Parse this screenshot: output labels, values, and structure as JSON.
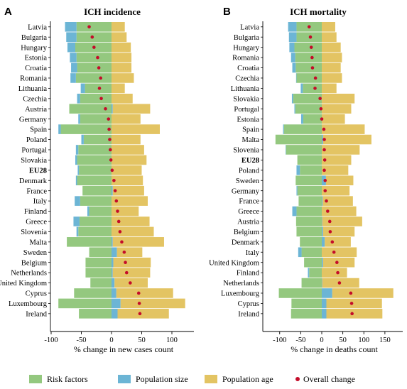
{
  "colors": {
    "risk": "#94c87f",
    "popsize": "#6cb5d5",
    "popage": "#e3c463",
    "overall": "#c40c2a"
  },
  "legend": [
    {
      "key": "risk",
      "label": "Risk factors",
      "kind": "box"
    },
    {
      "key": "popsize",
      "label": "Population size",
      "kind": "box"
    },
    {
      "key": "popage",
      "label": "Population age",
      "kind": "box"
    },
    {
      "key": "overall",
      "label": "Overall change",
      "kind": "dot"
    }
  ],
  "chart_data": [
    {
      "type": "bar",
      "subtype": "stacked-horizontal-with-overall-point",
      "panel": "A",
      "title": "ICH incidence",
      "xlabel": "% change in new cases count",
      "xlim": [
        -100,
        140
      ],
      "xticks": [
        -100,
        -50,
        0,
        50,
        100
      ],
      "bold_categories": [
        "EU28"
      ],
      "categories": [
        "Latvia",
        "Bulgaria",
        "Hungary",
        "Estonia",
        "Croatia",
        "Romania",
        "Lithuania",
        "Czechia",
        "Austria",
        "Germany",
        "Spain",
        "Poland",
        "Portugal",
        "Slovakia",
        "EU28",
        "Denmark",
        "France",
        "Italy",
        "Finland",
        "Greece",
        "Slovenia",
        "Malta",
        "Sweden",
        "Belgium",
        "Netherlands",
        "United Kingdom",
        "Cyprus",
        "Luxembourg",
        "Ireland"
      ],
      "series": [
        {
          "name": "Risk factors",
          "key": "risk",
          "values": [
            -58,
            -58,
            -60,
            -58,
            -57,
            -59,
            -44,
            -52,
            -70,
            -52,
            -84,
            -46,
            -55,
            -57,
            -54,
            -57,
            -48,
            -52,
            -37,
            -53,
            -55,
            -74,
            -37,
            -43,
            -43,
            -35,
            -62,
            -88,
            -54
          ]
        },
        {
          "name": "Population size",
          "key": "popsize",
          "values": [
            -19,
            -17,
            -13,
            -11,
            -10,
            -9,
            -7,
            -5,
            2,
            -3,
            -4,
            -4,
            -4,
            -3,
            -2,
            -2,
            2,
            -9,
            -3,
            -10,
            -3,
            2,
            9,
            3,
            2,
            5,
            8,
            15,
            10
          ]
        },
        {
          "name": "Population age",
          "key": "popage",
          "values": [
            22,
            25,
            32,
            33,
            33,
            37,
            22,
            35,
            62,
            48,
            80,
            48,
            54,
            58,
            50,
            52,
            52,
            60,
            45,
            63,
            70,
            85,
            42,
            62,
            62,
            55,
            94,
            107,
            85
          ]
        }
      ],
      "overall": [
        -37,
        -32,
        -29,
        -23,
        -21,
        -18,
        -20,
        -17,
        -10,
        -5,
        -4,
        -3,
        -2,
        -1,
        1,
        4,
        6,
        8,
        10,
        12,
        14,
        17,
        21,
        23,
        25,
        31,
        45,
        46,
        47
      ]
    },
    {
      "type": "bar",
      "subtype": "stacked-horizontal-with-overall-point",
      "panel": "B",
      "title": "ICH mortality",
      "xlabel": "% change in deaths count",
      "xlim": [
        -110,
        185
      ],
      "xticks": [
        -100,
        -50,
        0,
        50,
        100,
        150
      ],
      "bold_categories": [
        "EU28"
      ],
      "categories": [
        "Latvia",
        "Bulgaria",
        "Hungary",
        "Romania",
        "Croatia",
        "Czechia",
        "Lithuania",
        "Slovakia",
        "Portugal",
        "Estonia",
        "Spain",
        "Malta",
        "Slovenia",
        "EU28",
        "Poland",
        "Sweden",
        "Germany",
        "France",
        "Greece",
        "Austria",
        "Belgium",
        "Denmark",
        "Italy",
        "United Kingdom",
        "Finland",
        "Netherlands",
        "Luxembourg",
        "Cyprus",
        "Ireland"
      ],
      "series": [
        {
          "name": "Risk factors",
          "key": "risk",
          "values": [
            -60,
            -60,
            -65,
            -63,
            -62,
            -60,
            -45,
            -68,
            -63,
            -44,
            -90,
            -110,
            -85,
            -58,
            -52,
            -62,
            -58,
            -55,
            -60,
            -61,
            -60,
            -52,
            -48,
            -42,
            -30,
            -48,
            -102,
            -72,
            -73
          ]
        },
        {
          "name": "Population size",
          "key": "popsize",
          "values": [
            -20,
            -18,
            -12,
            -10,
            -8,
            -1,
            -5,
            -3,
            -2,
            -5,
            -2,
            3,
            -1,
            0,
            -8,
            10,
            -2,
            2,
            -10,
            1,
            3,
            7,
            -8,
            3,
            -3,
            1,
            25,
            11,
            11
          ]
        },
        {
          "name": "Population age",
          "key": "popage",
          "values": [
            32,
            35,
            45,
            48,
            45,
            48,
            35,
            78,
            70,
            55,
            102,
            115,
            90,
            70,
            63,
            65,
            66,
            72,
            82,
            95,
            75,
            62,
            83,
            75,
            60,
            88,
            145,
            132,
            133
          ]
        }
      ],
      "overall": [
        -30,
        -27,
        -25,
        -23,
        -22,
        -15,
        -16,
        -4,
        -2,
        0,
        5,
        6,
        6,
        7,
        6,
        8,
        8,
        11,
        14,
        19,
        20,
        25,
        29,
        36,
        38,
        42,
        69,
        71,
        72
      ]
    }
  ]
}
